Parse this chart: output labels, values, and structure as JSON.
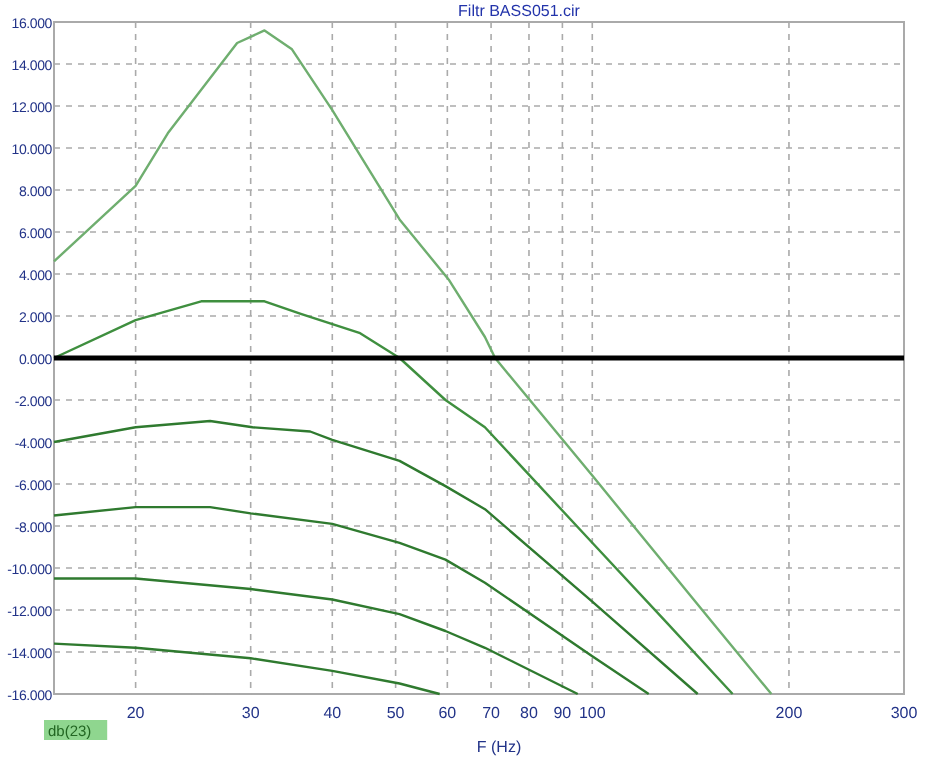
{
  "chart_data": {
    "type": "line",
    "title": "Filtr BASS051.cir",
    "xlabel": "F (Hz)",
    "log": "x",
    "grid": true,
    "xlim": [
      15,
      300
    ],
    "ylim": [
      -16,
      16
    ],
    "xticks": [
      20,
      30,
      40,
      50,
      60,
      70,
      80,
      90,
      100,
      200,
      300
    ],
    "yticks": [
      {
        "value": 16,
        "label": "16.000"
      },
      {
        "value": 14,
        "label": "14.000"
      },
      {
        "value": 12,
        "label": "12.000"
      },
      {
        "value": 10,
        "label": "10.000"
      },
      {
        "value": 8,
        "label": "8.000"
      },
      {
        "value": 6,
        "label": "6.000"
      },
      {
        "value": 4,
        "label": "4.000"
      },
      {
        "value": 2,
        "label": "2.000"
      },
      {
        "value": 0,
        "label": "0.000"
      },
      {
        "value": -2,
        "label": "-2.000"
      },
      {
        "value": -4,
        "label": "-4.000"
      },
      {
        "value": -6,
        "label": "-6.000"
      },
      {
        "value": -8,
        "label": "-8.000"
      },
      {
        "value": -10,
        "label": "-10.000"
      },
      {
        "value": -12,
        "label": "-12.000"
      },
      {
        "value": -14,
        "label": "-14.000"
      },
      {
        "value": -16,
        "label": "-16.000"
      }
    ],
    "ref_lines": [
      {
        "axis": "y",
        "value": 0,
        "color": "#000000"
      }
    ],
    "annotations": [
      "db(23)"
    ],
    "series": [
      {
        "color": "#6fae6f",
        "x": [
          15,
          20,
          22.4,
          28.6,
          31.5,
          34.7,
          40,
          50.7,
          60.4,
          68.5,
          71,
          100,
          150,
          188
        ],
        "values": [
          4.6,
          8.2,
          10.7,
          15.0,
          15.6,
          14.7,
          11.8,
          6.6,
          3.7,
          1.0,
          0,
          -5.6,
          -12.3,
          -16
        ]
      },
      {
        "color": "#3f8f3f",
        "x": [
          15,
          20,
          25.2,
          31.5,
          35.8,
          44,
          50.7,
          59.6,
          68.5,
          100,
          130,
          164
        ],
        "values": [
          0,
          1.8,
          2.7,
          2.7,
          2.1,
          1.2,
          0,
          -2.0,
          -3.3,
          -8.8,
          -12.6,
          -16
        ]
      },
      {
        "color": "#2f7a2f",
        "x": [
          15,
          20,
          26,
          30.2,
          37,
          40,
          50.7,
          59.6,
          68.5,
          100,
          145
        ],
        "values": [
          -4.0,
          -3.3,
          -3.0,
          -3.3,
          -3.5,
          -3.9,
          -4.9,
          -6.1,
          -7.2,
          -11.6,
          -16
        ]
      },
      {
        "color": "#2f7a2f",
        "x": [
          15,
          20,
          26,
          30,
          40,
          50.7,
          59.6,
          68.5,
          100,
          122
        ],
        "values": [
          -7.5,
          -7.1,
          -7.1,
          -7.4,
          -7.9,
          -8.8,
          -9.6,
          -10.7,
          -14.2,
          -16
        ]
      },
      {
        "color": "#2f7a2f",
        "x": [
          15,
          20,
          30,
          40,
          50.7,
          59.6,
          68.5,
          95
        ],
        "values": [
          -10.5,
          -10.5,
          -11.0,
          -11.5,
          -12.2,
          -13.0,
          -13.8,
          -16
        ]
      },
      {
        "color": "#2f7a2f",
        "x": [
          15,
          20,
          30,
          40,
          50.7,
          58.4
        ],
        "values": [
          -13.6,
          -13.8,
          -14.3,
          -14.9,
          -15.5,
          -16
        ]
      }
    ]
  }
}
